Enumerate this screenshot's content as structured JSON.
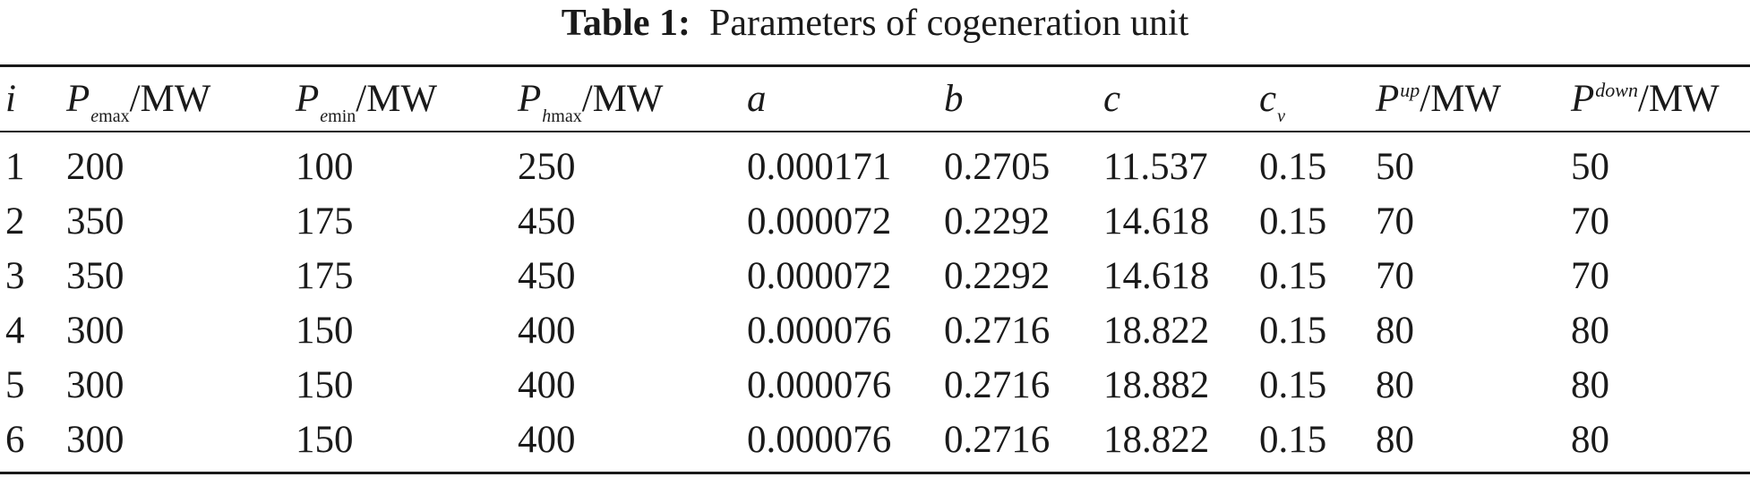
{
  "caption": {
    "label": "Table 1:",
    "text": "Parameters of cogeneration unit"
  },
  "table": {
    "headers": {
      "i": "i",
      "pemax": {
        "base": "P",
        "sub_var": "e",
        "sub_fn": "max",
        "unit": "/MW"
      },
      "pemin": {
        "base": "P",
        "sub_var": "e",
        "sub_fn": "min",
        "unit": "/MW"
      },
      "phmax": {
        "base": "P",
        "sub_var": "h",
        "sub_fn": "max",
        "unit": "/MW"
      },
      "a": "a",
      "b": "b",
      "c": "c",
      "cv": {
        "base": "c",
        "sub": "v"
      },
      "pup": {
        "base": "P",
        "sup": "up",
        "unit": "/MW"
      },
      "pdown": {
        "base": "P",
        "sup": "down",
        "unit": "/MW"
      }
    },
    "rows": [
      [
        "1",
        "200",
        "100",
        "250",
        "0.000171",
        "0.2705",
        "11.537",
        "0.15",
        "50",
        "50"
      ],
      [
        "2",
        "350",
        "175",
        "450",
        "0.000072",
        "0.2292",
        "14.618",
        "0.15",
        "70",
        "70"
      ],
      [
        "3",
        "350",
        "175",
        "450",
        "0.000072",
        "0.2292",
        "14.618",
        "0.15",
        "70",
        "70"
      ],
      [
        "4",
        "300",
        "150",
        "400",
        "0.000076",
        "0.2716",
        "18.822",
        "0.15",
        "80",
        "80"
      ],
      [
        "5",
        "300",
        "150",
        "400",
        "0.000076",
        "0.2716",
        "18.882",
        "0.15",
        "80",
        "80"
      ],
      [
        "6",
        "300",
        "150",
        "400",
        "0.000076",
        "0.2716",
        "18.822",
        "0.15",
        "80",
        "80"
      ]
    ]
  }
}
